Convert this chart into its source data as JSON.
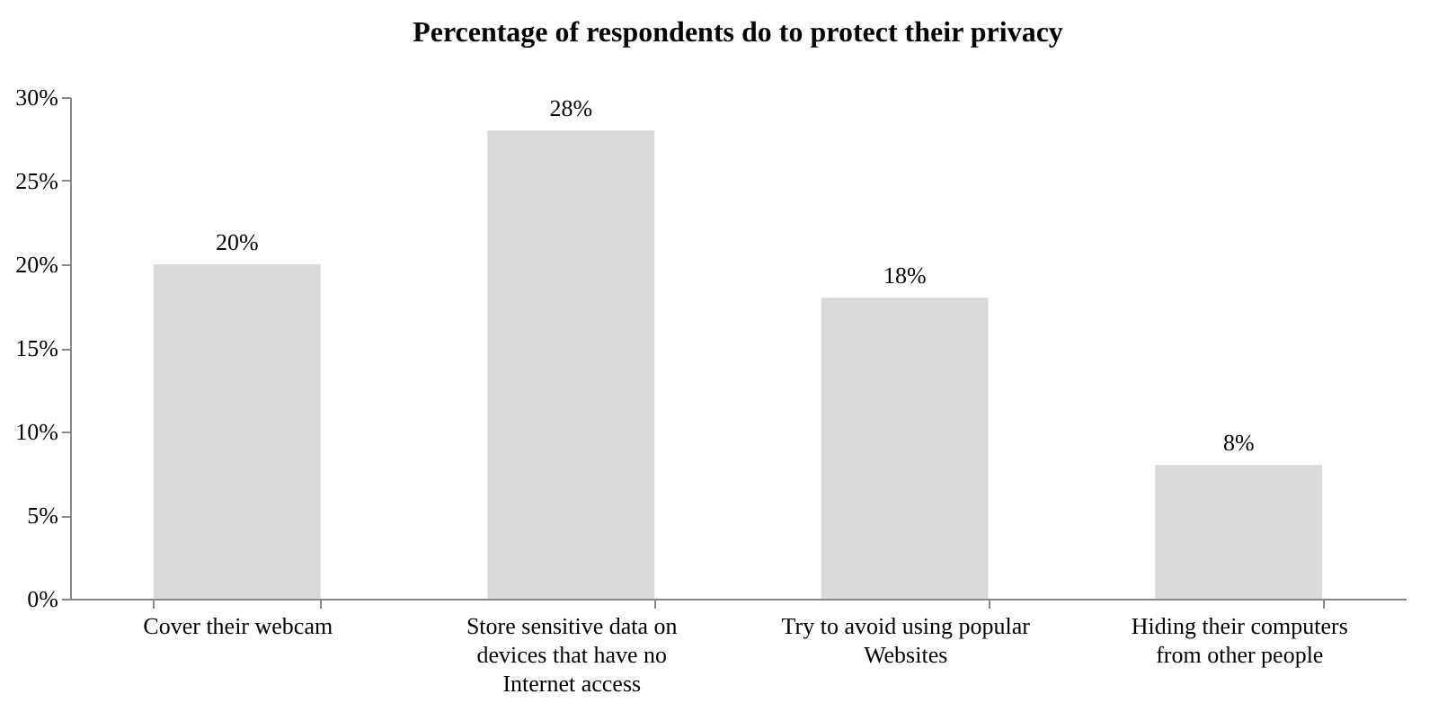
{
  "chart_data": {
    "type": "bar",
    "title": "Percentage of respondents do to protect their privacy",
    "categories": [
      "Cover their webcam",
      "Store sensitive data on devices that have no Internet access",
      "Try to avoid using popular Websites",
      "Hiding their computers from other people"
    ],
    "values": [
      20,
      28,
      18,
      8
    ],
    "value_labels": [
      "20%",
      "28%",
      "18%",
      "8%"
    ],
    "color": "#d9d9d9",
    "ylim": [
      0,
      30
    ],
    "yticks": [
      {
        "value": 0,
        "label": "0%"
      },
      {
        "value": 5,
        "label": "5%"
      },
      {
        "value": 10,
        "label": "10%"
      },
      {
        "value": 15,
        "label": "15%"
      },
      {
        "value": 20,
        "label": "20%"
      },
      {
        "value": 25,
        "label": "25%"
      },
      {
        "value": 30,
        "label": "30%"
      }
    ],
    "grid": false
  }
}
